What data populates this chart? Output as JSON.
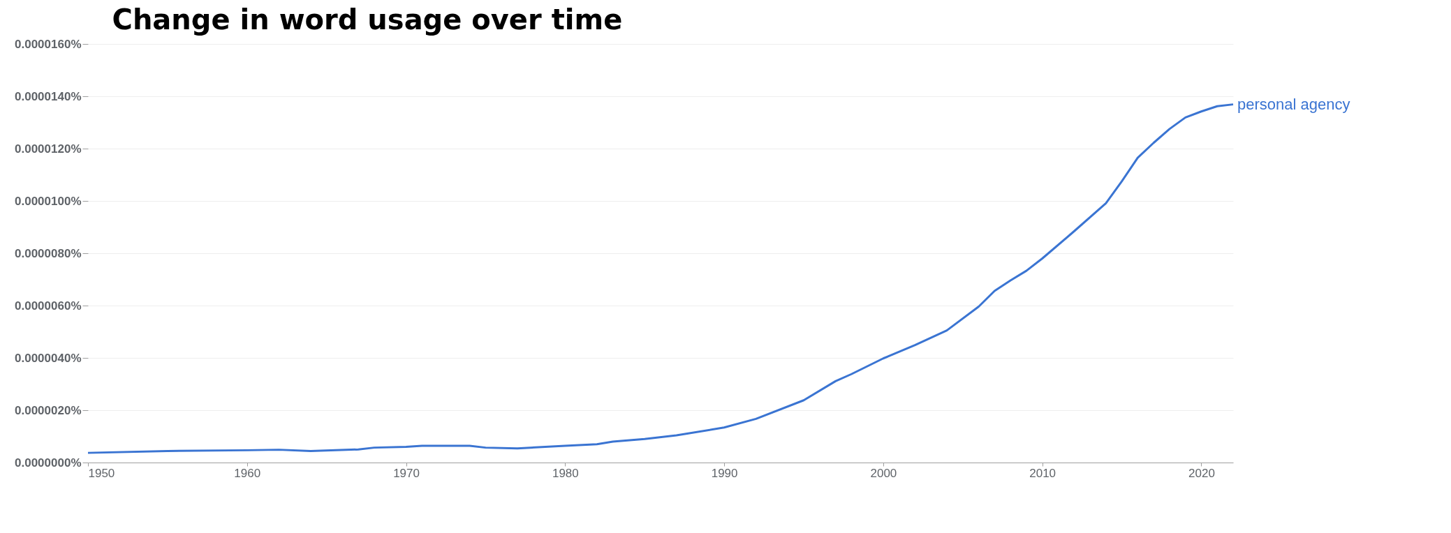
{
  "chart_data": {
    "type": "line",
    "title": "Change in word usage over time",
    "x": [
      1950,
      1955,
      1960,
      1962,
      1964,
      1967,
      1968,
      1970,
      1971,
      1974,
      1975,
      1977,
      1980,
      1982,
      1983,
      1985,
      1987,
      1990,
      1992,
      1995,
      1997,
      1998,
      2000,
      2002,
      2004,
      2006,
      2007,
      2008,
      2009,
      2010,
      2012,
      2014,
      2015,
      2016,
      2017,
      2018,
      2019,
      2020,
      2021,
      2022
    ],
    "series": [
      {
        "name": "personal agency",
        "color": "#3a74d2",
        "values": [
          3.7e-07,
          4.4e-07,
          4.7e-07,
          4.9e-07,
          4.4e-07,
          5e-07,
          5.7e-07,
          6e-07,
          6.4e-07,
          6.4e-07,
          5.7e-07,
          5.4e-07,
          6.4e-07,
          7e-07,
          8e-07,
          9e-07,
          1.04e-06,
          1.34e-06,
          1.67e-06,
          2.38e-06,
          3.11e-06,
          3.38e-06,
          3.98e-06,
          4.49e-06,
          5.05e-06,
          5.96e-06,
          6.56e-06,
          6.96e-06,
          7.33e-06,
          7.8e-06,
          8.84e-06,
          9.91e-06,
          1.075e-05,
          1.165e-05,
          1.222e-05,
          1.275e-05,
          1.319e-05,
          1.342e-05,
          1.362e-05,
          1.369e-05
        ]
      }
    ],
    "xlim": [
      1950,
      2022
    ],
    "xticks": [
      1950,
      1960,
      1970,
      1980,
      1990,
      2000,
      2010,
      2020
    ],
    "ylim": [
      0,
      1.6e-05
    ],
    "yticks": [
      {
        "value": 0,
        "label": "0.0000000%"
      },
      {
        "value": 2e-06,
        "label": "0.0000020%"
      },
      {
        "value": 4e-06,
        "label": "0.0000040%"
      },
      {
        "value": 6e-06,
        "label": "0.0000060%"
      },
      {
        "value": 8e-06,
        "label": "0.0000080%"
      },
      {
        "value": 1e-05,
        "label": "0.0000100%"
      },
      {
        "value": 1.2e-05,
        "label": "0.0000120%"
      },
      {
        "value": 1.4e-05,
        "label": "0.0000140%"
      },
      {
        "value": 1.6e-05,
        "label": "0.0000160%"
      }
    ],
    "grid": "y",
    "legend": false,
    "marker": "none",
    "line_style": "solid"
  }
}
